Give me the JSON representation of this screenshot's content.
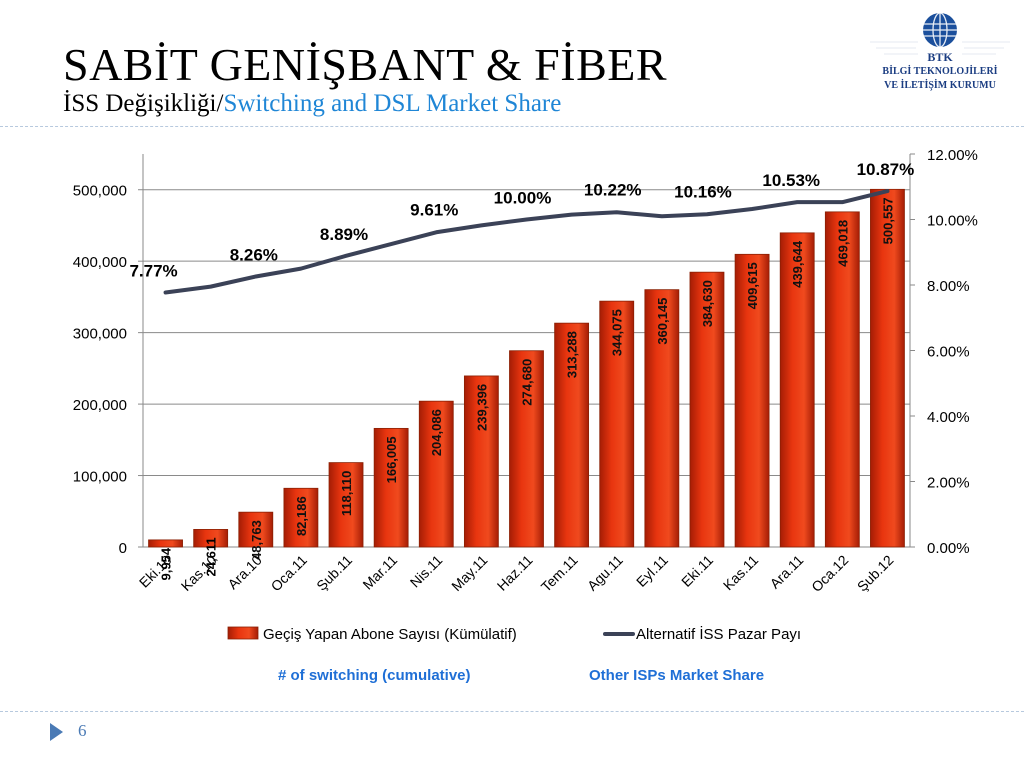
{
  "slide": {
    "title": "SABİT GENİŞBANT & FİBER",
    "subtitle_tr": "İSS Değişikliği/",
    "subtitle_en": "Switching and DSL Market Share",
    "page_number": "6"
  },
  "logo": {
    "abbr": "BTK",
    "line1": "BİLGİ TEKNOLOJİLERİ",
    "line2": "VE İLETİŞİM KURUMU"
  },
  "annotations": {
    "left": "# of switching (cumulative)",
    "right": "Other ISPs Market Share"
  },
  "colors": {
    "bar": "#e8350f",
    "bar_dark": "#a51d05",
    "line": "#3b4257",
    "accent_blue": "#1f86d6",
    "annotation_blue": "#1f6fd6"
  },
  "chart_data": {
    "type": "bar",
    "categories": [
      "Eki.10",
      "Kas.10",
      "Ara.10",
      "Oca.11",
      "Şub.11",
      "Mar.11",
      "Nis.11",
      "May.11",
      "Haz.11",
      "Tem.11",
      "Agu.11",
      "Eyl.11",
      "Eki.11",
      "Kas.11",
      "Ara.11",
      "Oca.12",
      "Şub.12"
    ],
    "series": [
      {
        "name": "Geçiş Yapan Abone Sayısı (Kümülatif)",
        "type": "bar",
        "axis": "left",
        "values": [
          9954,
          24611,
          48763,
          82186,
          118110,
          166005,
          204086,
          239396,
          274680,
          313288,
          344075,
          360145,
          384630,
          409615,
          439644,
          469018,
          500557
        ],
        "labels": [
          "9,954",
          "24,611",
          "48,763",
          "82,186",
          "118,110",
          "166,005",
          "204,086",
          "239,396",
          "274,680",
          "313,288",
          "344,075",
          "360,145",
          "384,630",
          "409,615",
          "439,644",
          "469,018",
          "500,557"
        ]
      },
      {
        "name": "Alternatif İSS Pazar Payı",
        "type": "line",
        "axis": "right",
        "values": [
          7.77,
          7.95,
          8.26,
          8.5,
          8.89,
          9.25,
          9.61,
          9.82,
          10.0,
          10.15,
          10.22,
          10.1,
          10.16,
          10.32,
          10.53,
          10.53,
          10.87
        ],
        "point_labels": {
          "0": "7.77%",
          "2": "8.26%",
          "4": "8.89%",
          "6": "9.61%",
          "8": "10.00%",
          "10": "10.22%",
          "12": "10.16%",
          "14": "10.53%",
          "16": "10.87%"
        }
      }
    ],
    "y_left": {
      "min": 0,
      "max": 550000,
      "ticks": [
        0,
        100000,
        200000,
        300000,
        400000,
        500000
      ],
      "tick_labels": [
        "0",
        "100,000",
        "200,000",
        "300,000",
        "400,000",
        "500,000"
      ]
    },
    "y_right": {
      "min": 0,
      "max": 12,
      "ticks": [
        0,
        2,
        4,
        6,
        8,
        10,
        12
      ],
      "tick_labels": [
        "0.00%",
        "2.00%",
        "4.00%",
        "6.00%",
        "8.00%",
        "10.00%",
        "12.00%"
      ]
    },
    "grid": true,
    "legend": "bottom"
  }
}
